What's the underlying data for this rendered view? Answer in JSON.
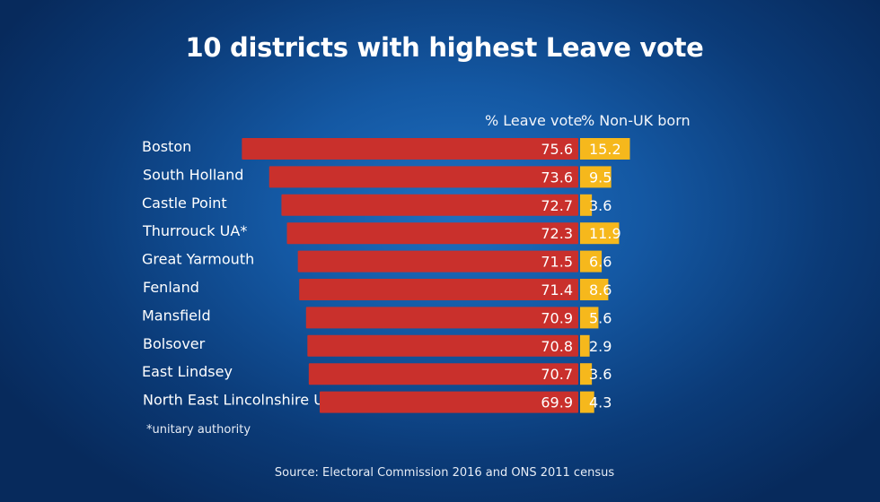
{
  "chart_data": {
    "type": "bar",
    "title": "10 districts with highest Leave vote",
    "categories": [
      "Boston",
      "South Holland",
      "Castle Point",
      "Thurrouck UA*",
      "Great Yarmouth",
      "Fenland",
      "Mansfield",
      "Bolsover",
      "East Lindsey",
      "North East Lincolnshire US"
    ],
    "series": [
      {
        "name": "% Leave vote",
        "values": [
          75.6,
          73.6,
          72.7,
          72.3,
          71.5,
          71.4,
          70.9,
          70.8,
          70.7,
          69.9
        ],
        "color": "#c9302c"
      },
      {
        "name": "% Non-UK born",
        "values": [
          15.2,
          9.5,
          3.6,
          11.9,
          6.6,
          8.6,
          5.6,
          2.9,
          3.6,
          4.3
        ],
        "color": "#f6b81c"
      }
    ],
    "orientation": "horizontal",
    "grid": false,
    "legend": "column headers above bars"
  },
  "footnote": "*unitary authority",
  "source": "Source: Electoral Commission 2016 and ONS 2011 census"
}
